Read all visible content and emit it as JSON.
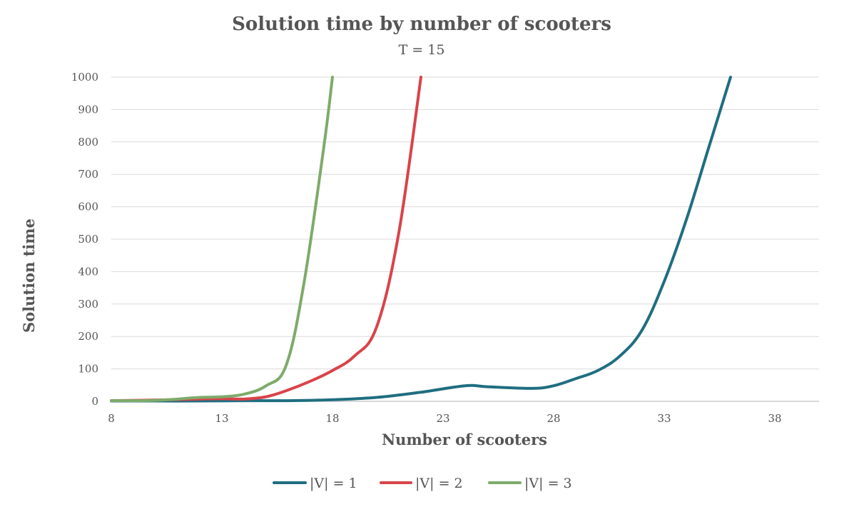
{
  "chart_data": {
    "type": "line",
    "title": "Solution time by number of scooters",
    "subtitle": "T = 15",
    "xlabel": "Number of scooters",
    "ylabel": "Solution time",
    "xlim": [
      8,
      40
    ],
    "ylim": [
      0,
      1000
    ],
    "xticks": [
      8,
      13,
      18,
      23,
      28,
      33,
      38
    ],
    "yticks": [
      0,
      100,
      200,
      300,
      400,
      500,
      600,
      700,
      800,
      900,
      1000
    ],
    "grid": true,
    "legend_position": "bottom",
    "series": [
      {
        "name": "|V| = 1",
        "color": "#1f6e80",
        "points": [
          [
            8,
            1
          ],
          [
            10,
            1
          ],
          [
            12,
            1
          ],
          [
            14,
            2
          ],
          [
            16,
            2
          ],
          [
            18,
            5
          ],
          [
            20,
            12
          ],
          [
            22,
            28
          ],
          [
            24,
            48
          ],
          [
            25,
            45
          ],
          [
            27,
            40
          ],
          [
            28,
            48
          ],
          [
            29,
            70
          ],
          [
            30,
            95
          ],
          [
            31,
            140
          ],
          [
            32,
            220
          ],
          [
            33,
            370
          ],
          [
            34,
            560
          ],
          [
            35,
            780
          ],
          [
            36,
            1000
          ]
        ]
      },
      {
        "name": "|V| = 2",
        "color": "#d9434a",
        "points": [
          [
            8,
            2
          ],
          [
            10,
            4
          ],
          [
            12,
            7
          ],
          [
            13,
            8
          ],
          [
            14,
            7
          ],
          [
            15,
            14
          ],
          [
            16,
            35
          ],
          [
            17,
            62
          ],
          [
            18,
            95
          ],
          [
            19,
            140
          ],
          [
            20,
            230
          ],
          [
            21,
            520
          ],
          [
            22,
            1000
          ]
        ]
      },
      {
        "name": "|V| = 3",
        "color": "#7dab6a",
        "points": [
          [
            8,
            2
          ],
          [
            10,
            3
          ],
          [
            12,
            12
          ],
          [
            13,
            14
          ],
          [
            14,
            22
          ],
          [
            15,
            48
          ],
          [
            15.9,
            110
          ],
          [
            16.7,
            360
          ],
          [
            17.6,
            780
          ],
          [
            18,
            1000
          ]
        ]
      }
    ]
  }
}
